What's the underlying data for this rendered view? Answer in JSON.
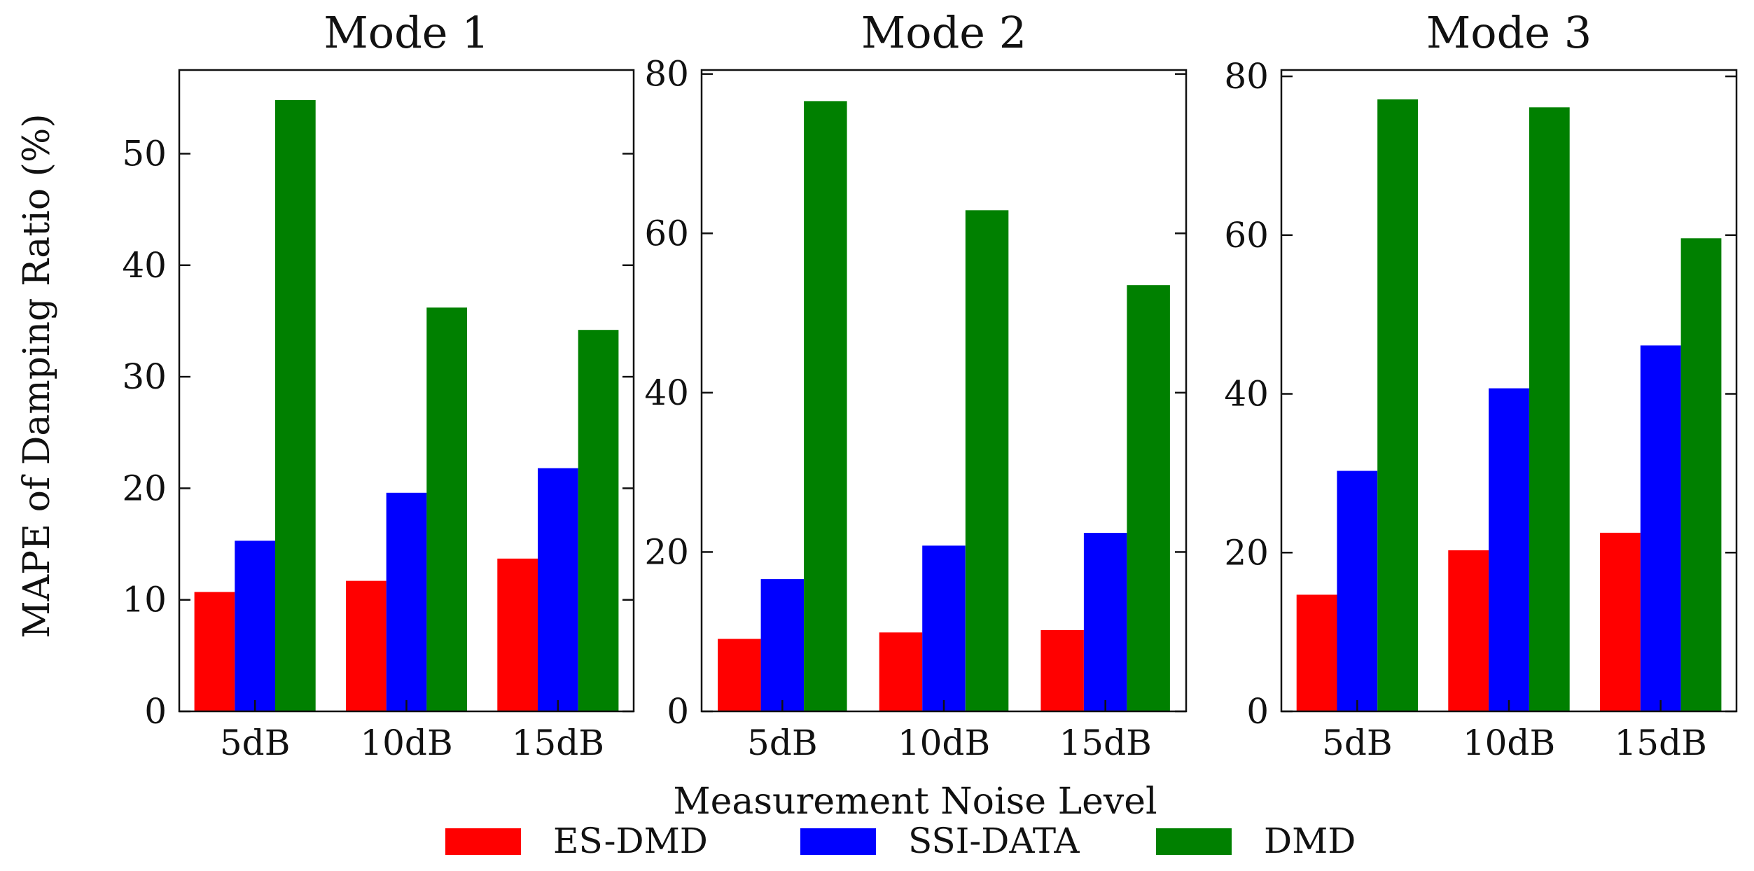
{
  "chart_data": {
    "type": "bar",
    "ylabel": "MAPE of Damping Ratio (%)",
    "xlabel": "Measurement Noise Level",
    "categories": [
      "5dB",
      "10dB",
      "15dB"
    ],
    "legend": {
      "placement": "bottom",
      "entries": [
        {
          "name": "ES-DMD",
          "color": "#ff0000"
        },
        {
          "name": "SSI-DATA",
          "color": "#0000ff"
        },
        {
          "name": "DMD",
          "color": "#008000"
        }
      ]
    },
    "panels": [
      {
        "title": "Mode 1",
        "ylim": [
          0,
          57.5
        ],
        "yticks": [
          0,
          10,
          20,
          30,
          40,
          50
        ],
        "series": [
          {
            "name": "ES-DMD",
            "values": [
              10.7,
              11.7,
              13.7
            ]
          },
          {
            "name": "SSI-DATA",
            "values": [
              15.3,
              19.6,
              21.8
            ]
          },
          {
            "name": "DMD",
            "values": [
              54.8,
              36.2,
              34.2
            ]
          }
        ]
      },
      {
        "title": "Mode 2",
        "ylim": [
          0,
          80.5
        ],
        "yticks": [
          0,
          20,
          40,
          60,
          80
        ],
        "series": [
          {
            "name": "ES-DMD",
            "values": [
              9.1,
              9.9,
              10.2
            ]
          },
          {
            "name": "SSI-DATA",
            "values": [
              16.6,
              20.8,
              22.4
            ]
          },
          {
            "name": "DMD",
            "values": [
              76.6,
              62.9,
              53.5
            ]
          }
        ]
      },
      {
        "title": "Mode 3",
        "ylim": [
          0,
          80.8
        ],
        "yticks": [
          0,
          20,
          40,
          60,
          80
        ],
        "series": [
          {
            "name": "ES-DMD",
            "values": [
              14.7,
              20.3,
              22.5
            ]
          },
          {
            "name": "SSI-DATA",
            "values": [
              30.3,
              40.7,
              46.1
            ]
          },
          {
            "name": "DMD",
            "values": [
              77.1,
              76.1,
              59.6
            ]
          }
        ]
      }
    ]
  }
}
